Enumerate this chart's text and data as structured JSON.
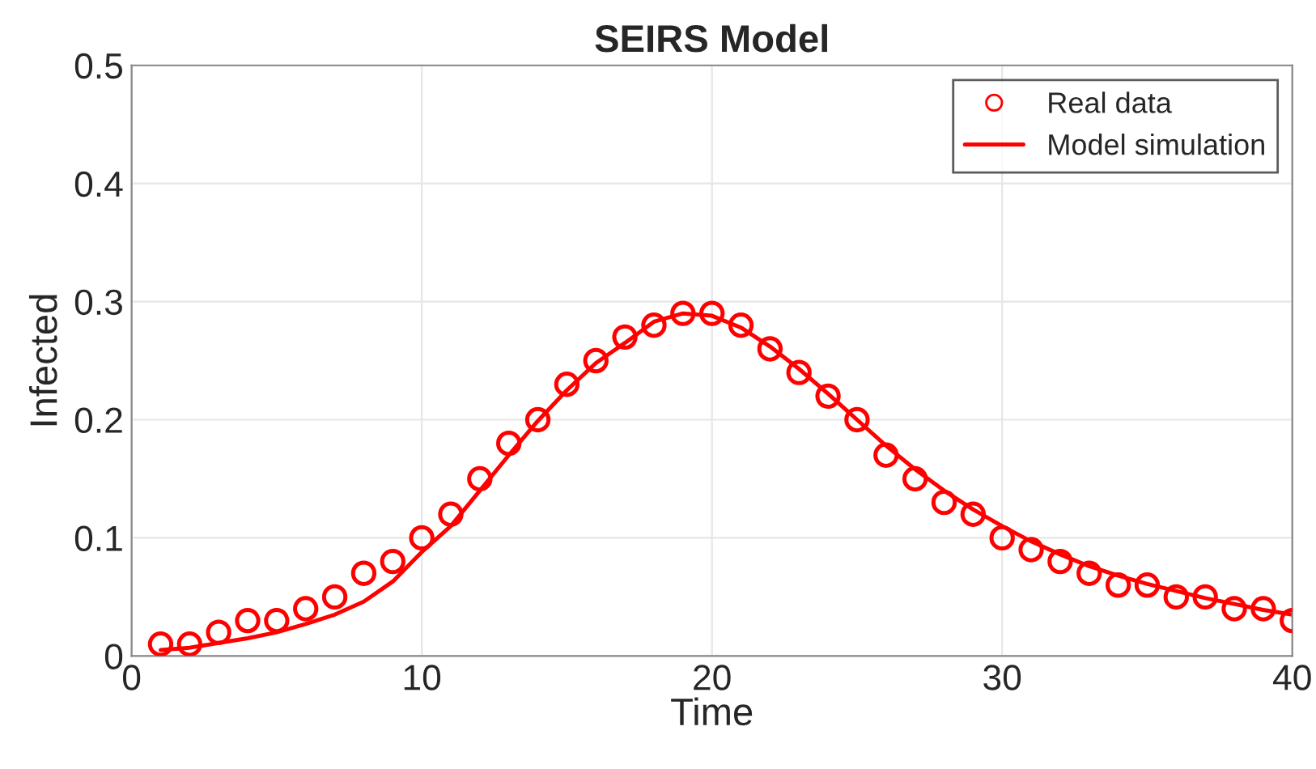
{
  "chart_data": {
    "type": "line",
    "title": "SEIRS Model",
    "xlabel": "Time",
    "ylabel": "Infected",
    "xlim": [
      0,
      40
    ],
    "xticks": [
      0,
      10,
      20,
      30,
      40
    ],
    "ylim": [
      0,
      0.5
    ],
    "yticks": [
      0,
      0.1,
      0.2,
      0.3,
      0.4,
      0.5
    ],
    "grid": true,
    "legend": "top right",
    "series": [
      {
        "name": "Real data",
        "type": "scatter",
        "marker": "circle",
        "color": "#ff0000",
        "x": [
          1,
          2,
          3,
          4,
          5,
          6,
          7,
          8,
          9,
          10,
          11,
          12,
          13,
          14,
          15,
          16,
          17,
          18,
          19,
          20,
          21,
          22,
          23,
          24,
          25,
          26,
          27,
          28,
          29,
          30,
          31,
          32,
          33,
          34,
          35,
          36,
          37,
          38,
          39,
          40
        ],
        "values": [
          0.01,
          0.01,
          0.02,
          0.03,
          0.03,
          0.04,
          0.05,
          0.07,
          0.08,
          0.1,
          0.12,
          0.15,
          0.18,
          0.2,
          0.23,
          0.25,
          0.27,
          0.28,
          0.29,
          0.29,
          0.28,
          0.26,
          0.24,
          0.22,
          0.2,
          0.17,
          0.15,
          0.13,
          0.12,
          0.1,
          0.09,
          0.08,
          0.07,
          0.06,
          0.06,
          0.05,
          0.05,
          0.04,
          0.04,
          0.03
        ]
      },
      {
        "name": "Model simulation",
        "line_style": "solid",
        "color": "#ff0000",
        "x": [
          1,
          2,
          3,
          4,
          5,
          6,
          7,
          8,
          9,
          10,
          11,
          12,
          13,
          14,
          15,
          16,
          17,
          18,
          19,
          20,
          21,
          22,
          23,
          24,
          25,
          26,
          27,
          28,
          29,
          30,
          31,
          32,
          33,
          34,
          35,
          36,
          37,
          38,
          39,
          40
        ],
        "values": [
          0.005,
          0.007,
          0.011,
          0.015,
          0.02,
          0.027,
          0.035,
          0.046,
          0.063,
          0.088,
          0.11,
          0.14,
          0.17,
          0.199,
          0.225,
          0.248,
          0.265,
          0.283,
          0.29,
          0.288,
          0.278,
          0.262,
          0.243,
          0.222,
          0.2,
          0.178,
          0.158,
          0.14,
          0.124,
          0.11,
          0.097,
          0.086,
          0.076,
          0.068,
          0.061,
          0.055,
          0.049,
          0.044,
          0.039,
          0.035
        ]
      }
    ]
  }
}
